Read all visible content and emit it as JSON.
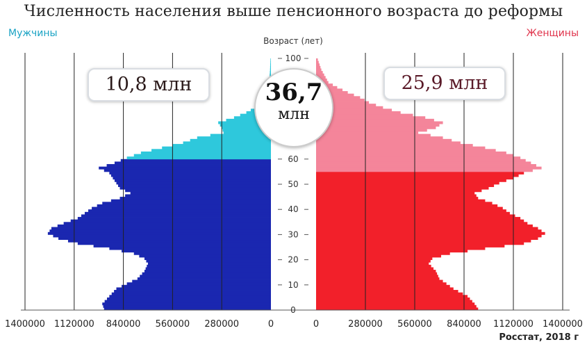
{
  "title": "Численность населения выше пенсионного возраста до реформы",
  "men_label": "Мужчины",
  "women_label": "Женщины",
  "source": "Росстат, 2018 г",
  "men_total": "10,8 млн",
  "women_total": "25,9 млн",
  "total_value": "36,7",
  "total_unit": "млн",
  "colors": {
    "men_working": "#1a27b0",
    "men_pension": "#2ec8dc",
    "women_working": "#f2202a",
    "women_pension": "#f4859a",
    "grid": "#222222"
  },
  "chart_data": {
    "type": "bar",
    "orientation": "horizontal population pyramid",
    "y_axis_label": "Возраст (лет)",
    "y_ticks": [
      0,
      10,
      20,
      30,
      40,
      50,
      60,
      70,
      80,
      90,
      100
    ],
    "y_range": [
      0,
      100
    ],
    "x_ticks_left": [
      "1400000",
      "1120000",
      "840000",
      "560000",
      "280000",
      "0"
    ],
    "x_ticks_right": [
      "0",
      "280000",
      "560000",
      "840000",
      "1120000",
      "1400000"
    ],
    "x_range": [
      0,
      1400000
    ],
    "men_pension_age": 60,
    "women_pension_age": 55,
    "men": [
      {
        "age": 0,
        "value": 950000
      },
      {
        "age": 2,
        "value": 960000
      },
      {
        "age": 5,
        "value": 920000
      },
      {
        "age": 8,
        "value": 880000
      },
      {
        "age": 10,
        "value": 820000
      },
      {
        "age": 12,
        "value": 760000
      },
      {
        "age": 15,
        "value": 720000
      },
      {
        "age": 18,
        "value": 700000
      },
      {
        "age": 20,
        "value": 720000
      },
      {
        "age": 22,
        "value": 780000
      },
      {
        "age": 24,
        "value": 920000
      },
      {
        "age": 26,
        "value": 1100000
      },
      {
        "age": 28,
        "value": 1210000
      },
      {
        "age": 30,
        "value": 1270000
      },
      {
        "age": 32,
        "value": 1250000
      },
      {
        "age": 34,
        "value": 1180000
      },
      {
        "age": 36,
        "value": 1100000
      },
      {
        "age": 38,
        "value": 1060000
      },
      {
        "age": 40,
        "value": 1020000
      },
      {
        "age": 42,
        "value": 960000
      },
      {
        "age": 44,
        "value": 860000
      },
      {
        "age": 46,
        "value": 800000
      },
      {
        "age": 48,
        "value": 860000
      },
      {
        "age": 50,
        "value": 880000
      },
      {
        "age": 52,
        "value": 900000
      },
      {
        "age": 54,
        "value": 920000
      },
      {
        "age": 56,
        "value": 980000
      },
      {
        "age": 58,
        "value": 890000
      },
      {
        "age": 60,
        "value": 820000
      },
      {
        "age": 62,
        "value": 740000
      },
      {
        "age": 64,
        "value": 620000
      },
      {
        "age": 66,
        "value": 500000
      },
      {
        "age": 68,
        "value": 420000
      },
      {
        "age": 70,
        "value": 270000
      },
      {
        "age": 72,
        "value": 280000
      },
      {
        "age": 74,
        "value": 300000
      },
      {
        "age": 76,
        "value": 210000
      },
      {
        "age": 78,
        "value": 140000
      },
      {
        "age": 80,
        "value": 90000
      },
      {
        "age": 82,
        "value": 60000
      },
      {
        "age": 84,
        "value": 40000
      },
      {
        "age": 86,
        "value": 25000
      },
      {
        "age": 88,
        "value": 15000
      },
      {
        "age": 90,
        "value": 10000
      },
      {
        "age": 95,
        "value": 5000
      },
      {
        "age": 100,
        "value": 2000
      }
    ],
    "women": [
      {
        "age": 0,
        "value": 920000
      },
      {
        "age": 2,
        "value": 900000
      },
      {
        "age": 5,
        "value": 860000
      },
      {
        "age": 8,
        "value": 780000
      },
      {
        "age": 10,
        "value": 740000
      },
      {
        "age": 12,
        "value": 700000
      },
      {
        "age": 15,
        "value": 680000
      },
      {
        "age": 18,
        "value": 640000
      },
      {
        "age": 20,
        "value": 660000
      },
      {
        "age": 22,
        "value": 760000
      },
      {
        "age": 24,
        "value": 960000
      },
      {
        "age": 26,
        "value": 1180000
      },
      {
        "age": 28,
        "value": 1260000
      },
      {
        "age": 30,
        "value": 1300000
      },
      {
        "age": 32,
        "value": 1260000
      },
      {
        "age": 34,
        "value": 1200000
      },
      {
        "age": 36,
        "value": 1160000
      },
      {
        "age": 38,
        "value": 1100000
      },
      {
        "age": 40,
        "value": 1060000
      },
      {
        "age": 42,
        "value": 1000000
      },
      {
        "age": 44,
        "value": 920000
      },
      {
        "age": 46,
        "value": 900000
      },
      {
        "age": 48,
        "value": 980000
      },
      {
        "age": 50,
        "value": 1040000
      },
      {
        "age": 52,
        "value": 1120000
      },
      {
        "age": 54,
        "value": 1180000
      },
      {
        "age": 56,
        "value": 1280000
      },
      {
        "age": 58,
        "value": 1220000
      },
      {
        "age": 60,
        "value": 1160000
      },
      {
        "age": 62,
        "value": 1080000
      },
      {
        "age": 64,
        "value": 960000
      },
      {
        "age": 66,
        "value": 820000
      },
      {
        "age": 68,
        "value": 720000
      },
      {
        "age": 70,
        "value": 580000
      },
      {
        "age": 72,
        "value": 680000
      },
      {
        "age": 74,
        "value": 720000
      },
      {
        "age": 76,
        "value": 620000
      },
      {
        "age": 78,
        "value": 480000
      },
      {
        "age": 80,
        "value": 380000
      },
      {
        "age": 82,
        "value": 300000
      },
      {
        "age": 84,
        "value": 250000
      },
      {
        "age": 86,
        "value": 180000
      },
      {
        "age": 88,
        "value": 120000
      },
      {
        "age": 90,
        "value": 70000
      },
      {
        "age": 95,
        "value": 30000
      },
      {
        "age": 100,
        "value": 5000
      }
    ]
  }
}
